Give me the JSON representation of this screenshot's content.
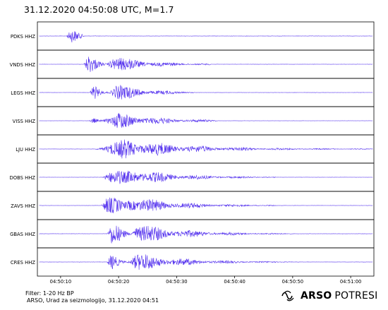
{
  "title": "31.12.2020  04:50:08 UTC, M=1.7",
  "footer": {
    "filter": "Filter: 1-20 Hz BP",
    "credit": "ARSO, Urad za seizmologijo, 31.12.2020  04:51",
    "brand_bold": "ARSO",
    "brand_light": "POTRESI"
  },
  "colors": {
    "trace": "#5533ee",
    "frame": "#000000"
  },
  "chart_data": {
    "type": "line",
    "title": "31.12.2020  04:50:08 UTC, M=1.7",
    "xlabel": "",
    "ylabel": "",
    "xlim": [
      "04:50:06",
      "04:51:04"
    ],
    "x_ticks": [
      "04:50:10",
      "04:50:20",
      "04:50:30",
      "04:50:40",
      "04:50:50",
      "04:51:00"
    ],
    "grid": false,
    "series": [
      {
        "name": "PDKS HHZ",
        "arrival": "04:50:11",
        "peak_amp": 0.9,
        "decay_s": 1.2,
        "duration_s": 3
      },
      {
        "name": "VNDS HHZ",
        "arrival": "04:50:14",
        "peak_amp": 0.75,
        "decay_s": 7,
        "duration_s": 22
      },
      {
        "name": "LEGS HHZ",
        "arrival": "04:50:15",
        "peak_amp": 0.8,
        "decay_s": 6,
        "duration_s": 18
      },
      {
        "name": "VISS HHZ",
        "arrival": "04:50:15",
        "peak_amp": 0.7,
        "decay_s": 8,
        "duration_s": 22
      },
      {
        "name": "LJU HHZ",
        "arrival": "04:50:16",
        "peak_amp": 0.75,
        "decay_s": 12,
        "duration_s": 48
      },
      {
        "name": "DOBS HHZ",
        "arrival": "04:50:17",
        "peak_amp": 0.7,
        "decay_s": 9,
        "duration_s": 30
      },
      {
        "name": "ZAVS HHZ",
        "arrival": "04:50:17",
        "peak_amp": 0.75,
        "decay_s": 9,
        "duration_s": 30
      },
      {
        "name": "GBAS HHZ",
        "arrival": "04:50:18",
        "peak_amp": 0.85,
        "decay_s": 9,
        "duration_s": 32
      },
      {
        "name": "CRES HHZ",
        "arrival": "04:50:18",
        "peak_amp": 0.75,
        "decay_s": 9,
        "duration_s": 32
      }
    ]
  }
}
